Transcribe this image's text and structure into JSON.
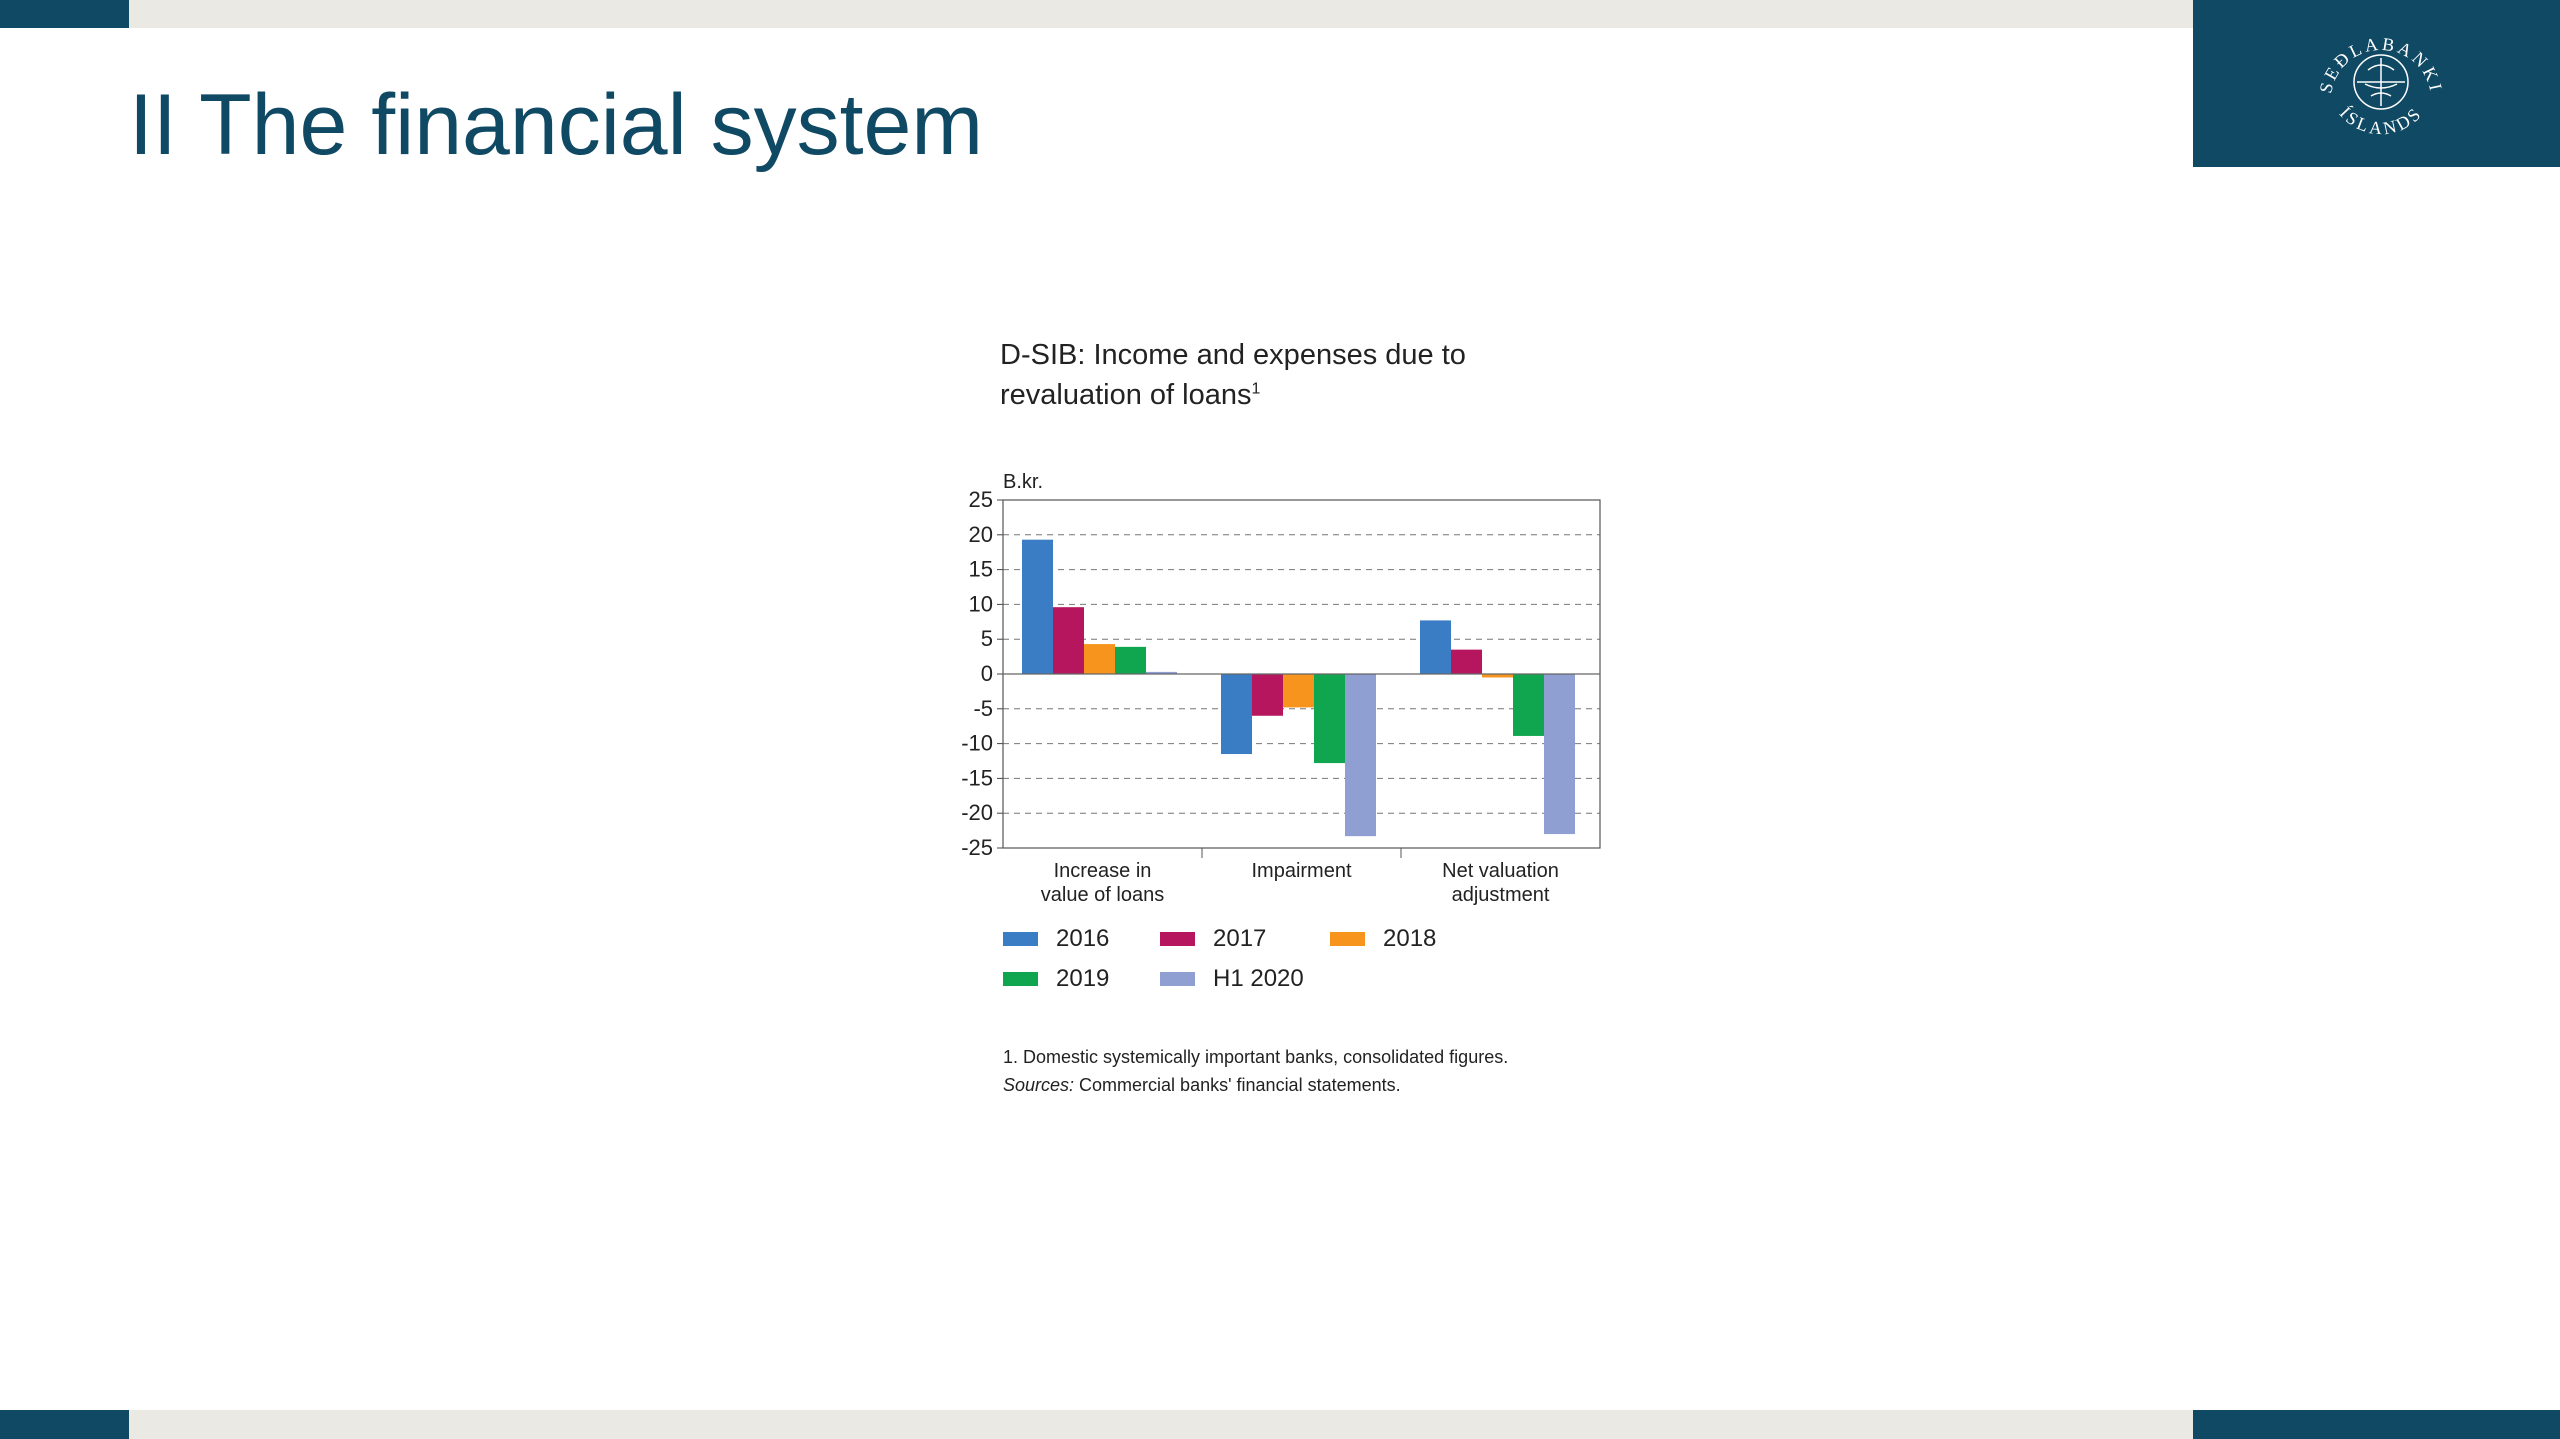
{
  "slide": {
    "title": "II The financial system",
    "colors": {
      "brand": "#0f4964",
      "band": "#ebe9e4"
    }
  },
  "logo": {
    "name": "Sedlabanki Islands seal",
    "text_top": "SEÐLABANKI",
    "text_bottom": "ÍSLANDS"
  },
  "chart_data": {
    "type": "bar",
    "title": "D-SIB: Income and expenses due to revaluation of loans",
    "title_line1": "D-SIB: Income and expenses due to",
    "title_line2": "revaluation of loans",
    "title_footnote_mark": "1",
    "ylabel": "B.kr.",
    "ylim": [
      -25,
      25
    ],
    "yticks": [
      25,
      20,
      15,
      10,
      5,
      0,
      -5,
      -10,
      -15,
      -20,
      -25
    ],
    "grid": "dashed-horizontal",
    "categories": [
      [
        "Increase in",
        "value of loans"
      ],
      [
        "Impairment"
      ],
      [
        "Net valuation",
        "adjustment"
      ]
    ],
    "series": [
      {
        "name": "2016",
        "color": "#3a7dc4",
        "values": [
          19.3,
          -11.5,
          7.7
        ]
      },
      {
        "name": "2017",
        "color": "#b5165e",
        "values": [
          9.6,
          -6.0,
          3.5
        ]
      },
      {
        "name": "2018",
        "color": "#f7941d",
        "values": [
          4.3,
          -4.8,
          -0.5
        ]
      },
      {
        "name": "2019",
        "color": "#10a650",
        "values": [
          3.9,
          -12.8,
          -8.9
        ]
      },
      {
        "name": "H1 2020",
        "color": "#8f9fd1",
        "values": [
          0.3,
          -23.3,
          -23.0
        ]
      }
    ],
    "legend_position": "bottom"
  },
  "legend": {
    "items": [
      {
        "label": "2016",
        "color": "#3a7dc4"
      },
      {
        "label": "2017",
        "color": "#b5165e"
      },
      {
        "label": "2018",
        "color": "#f7941d"
      },
      {
        "label": "2019",
        "color": "#10a650"
      },
      {
        "label": "H1 2020",
        "color": "#8f9fd1"
      }
    ]
  },
  "footnotes": {
    "note1": "1. Domestic systemically important banks, consolidated figures.",
    "sources_label": "Sources:",
    "sources_text": " Commercial banks' financial statements."
  }
}
